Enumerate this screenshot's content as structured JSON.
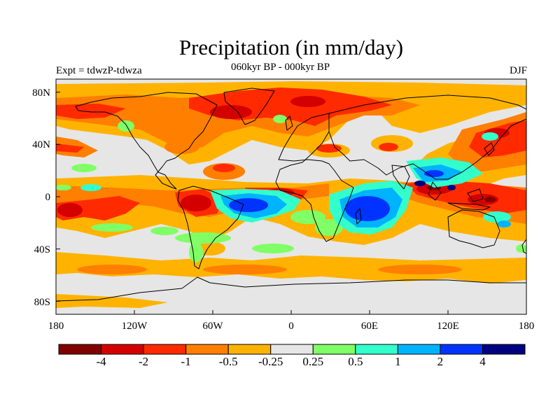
{
  "figure": {
    "title": "Precipitation (in mm/day)",
    "subtitle": "060kyr BP - 000kyr BP",
    "left_label": "Expt = tdwzP-tdwza",
    "right_label": "DJF"
  },
  "map": {
    "projection": "cylindrical equidistant",
    "lon_range": [
      -180,
      180
    ],
    "lat_range": [
      -90,
      90
    ],
    "x_ticks": [
      "180",
      "120W",
      "60W",
      "0",
      "60E",
      "120E",
      "180"
    ],
    "y_ticks": [
      "80N",
      "40N",
      "0",
      "40S",
      "80S"
    ],
    "background_color": "#e6e6e6",
    "field": "precipitation anomaly"
  },
  "colorbar": {
    "colors": [
      "#800000",
      "#d40000",
      "#ff2a00",
      "#ff7f00",
      "#ffb300",
      "#e6e6e6",
      "#80ff66",
      "#33ffcc",
      "#00b3ff",
      "#0033ff",
      "#000080"
    ],
    "tick_labels": [
      "-4",
      "-2",
      "-1",
      "-0.5",
      "-0.25",
      "0.25",
      "0.5",
      "1",
      "2",
      "4"
    ]
  },
  "colors": {
    "dry_strong": "#d40000",
    "dry": "#ff2a00",
    "dry_mild": "#ff7f00",
    "dry_weak": "#ffb300",
    "neutral": "#e6e6e6",
    "wet_weak": "#80ff66",
    "wet_mild": "#33ffcc",
    "wet": "#00b3ff",
    "wet_strong": "#0033ff",
    "wet_max": "#000080"
  }
}
